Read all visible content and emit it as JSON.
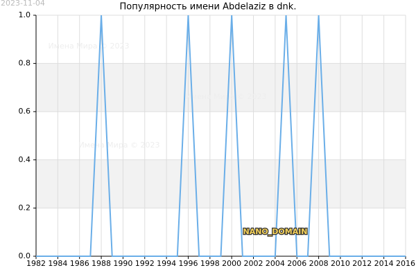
{
  "chart_data": {
    "type": "line",
    "title": "Популярность имени Abdelaziz в dnk.",
    "date": "2023-11-04",
    "watermarks": [
      "Имена Мира © 2023",
      "Имена Мира © 2023",
      "Имена Мира © 2023"
    ],
    "badge": "NANO_DOMAIN",
    "x": [
      1982,
      1983,
      1984,
      1985,
      1986,
      1987,
      1988,
      1989,
      1990,
      1991,
      1992,
      1993,
      1994,
      1995,
      1996,
      1997,
      1998,
      1999,
      2000,
      2001,
      2002,
      2003,
      2004,
      2005,
      2006,
      2007,
      2008,
      2009,
      2010,
      2011,
      2012,
      2013,
      2014,
      2015,
      2016
    ],
    "values": [
      0,
      0,
      0,
      0,
      0,
      0,
      1,
      0,
      0,
      0,
      0,
      0,
      0,
      0,
      1,
      0,
      0,
      0,
      1,
      0,
      0,
      0,
      0,
      1,
      0,
      0,
      1,
      0,
      0,
      0,
      0,
      0,
      0,
      0,
      0
    ],
    "color": "#6aaee8",
    "xlim": [
      1982,
      2016
    ],
    "xticks": [
      1982,
      1984,
      1986,
      1988,
      1990,
      1992,
      1994,
      1996,
      1998,
      2000,
      2002,
      2004,
      2006,
      2008,
      2010,
      2012,
      2014,
      2016
    ],
    "ylim": [
      0,
      1
    ],
    "yticks": [
      {
        "value": 0,
        "label": "0.0"
      },
      0.2,
      0.4,
      0.6,
      0.8,
      {
        "value": 1,
        "label": "1.0"
      }
    ],
    "grid": true
  }
}
